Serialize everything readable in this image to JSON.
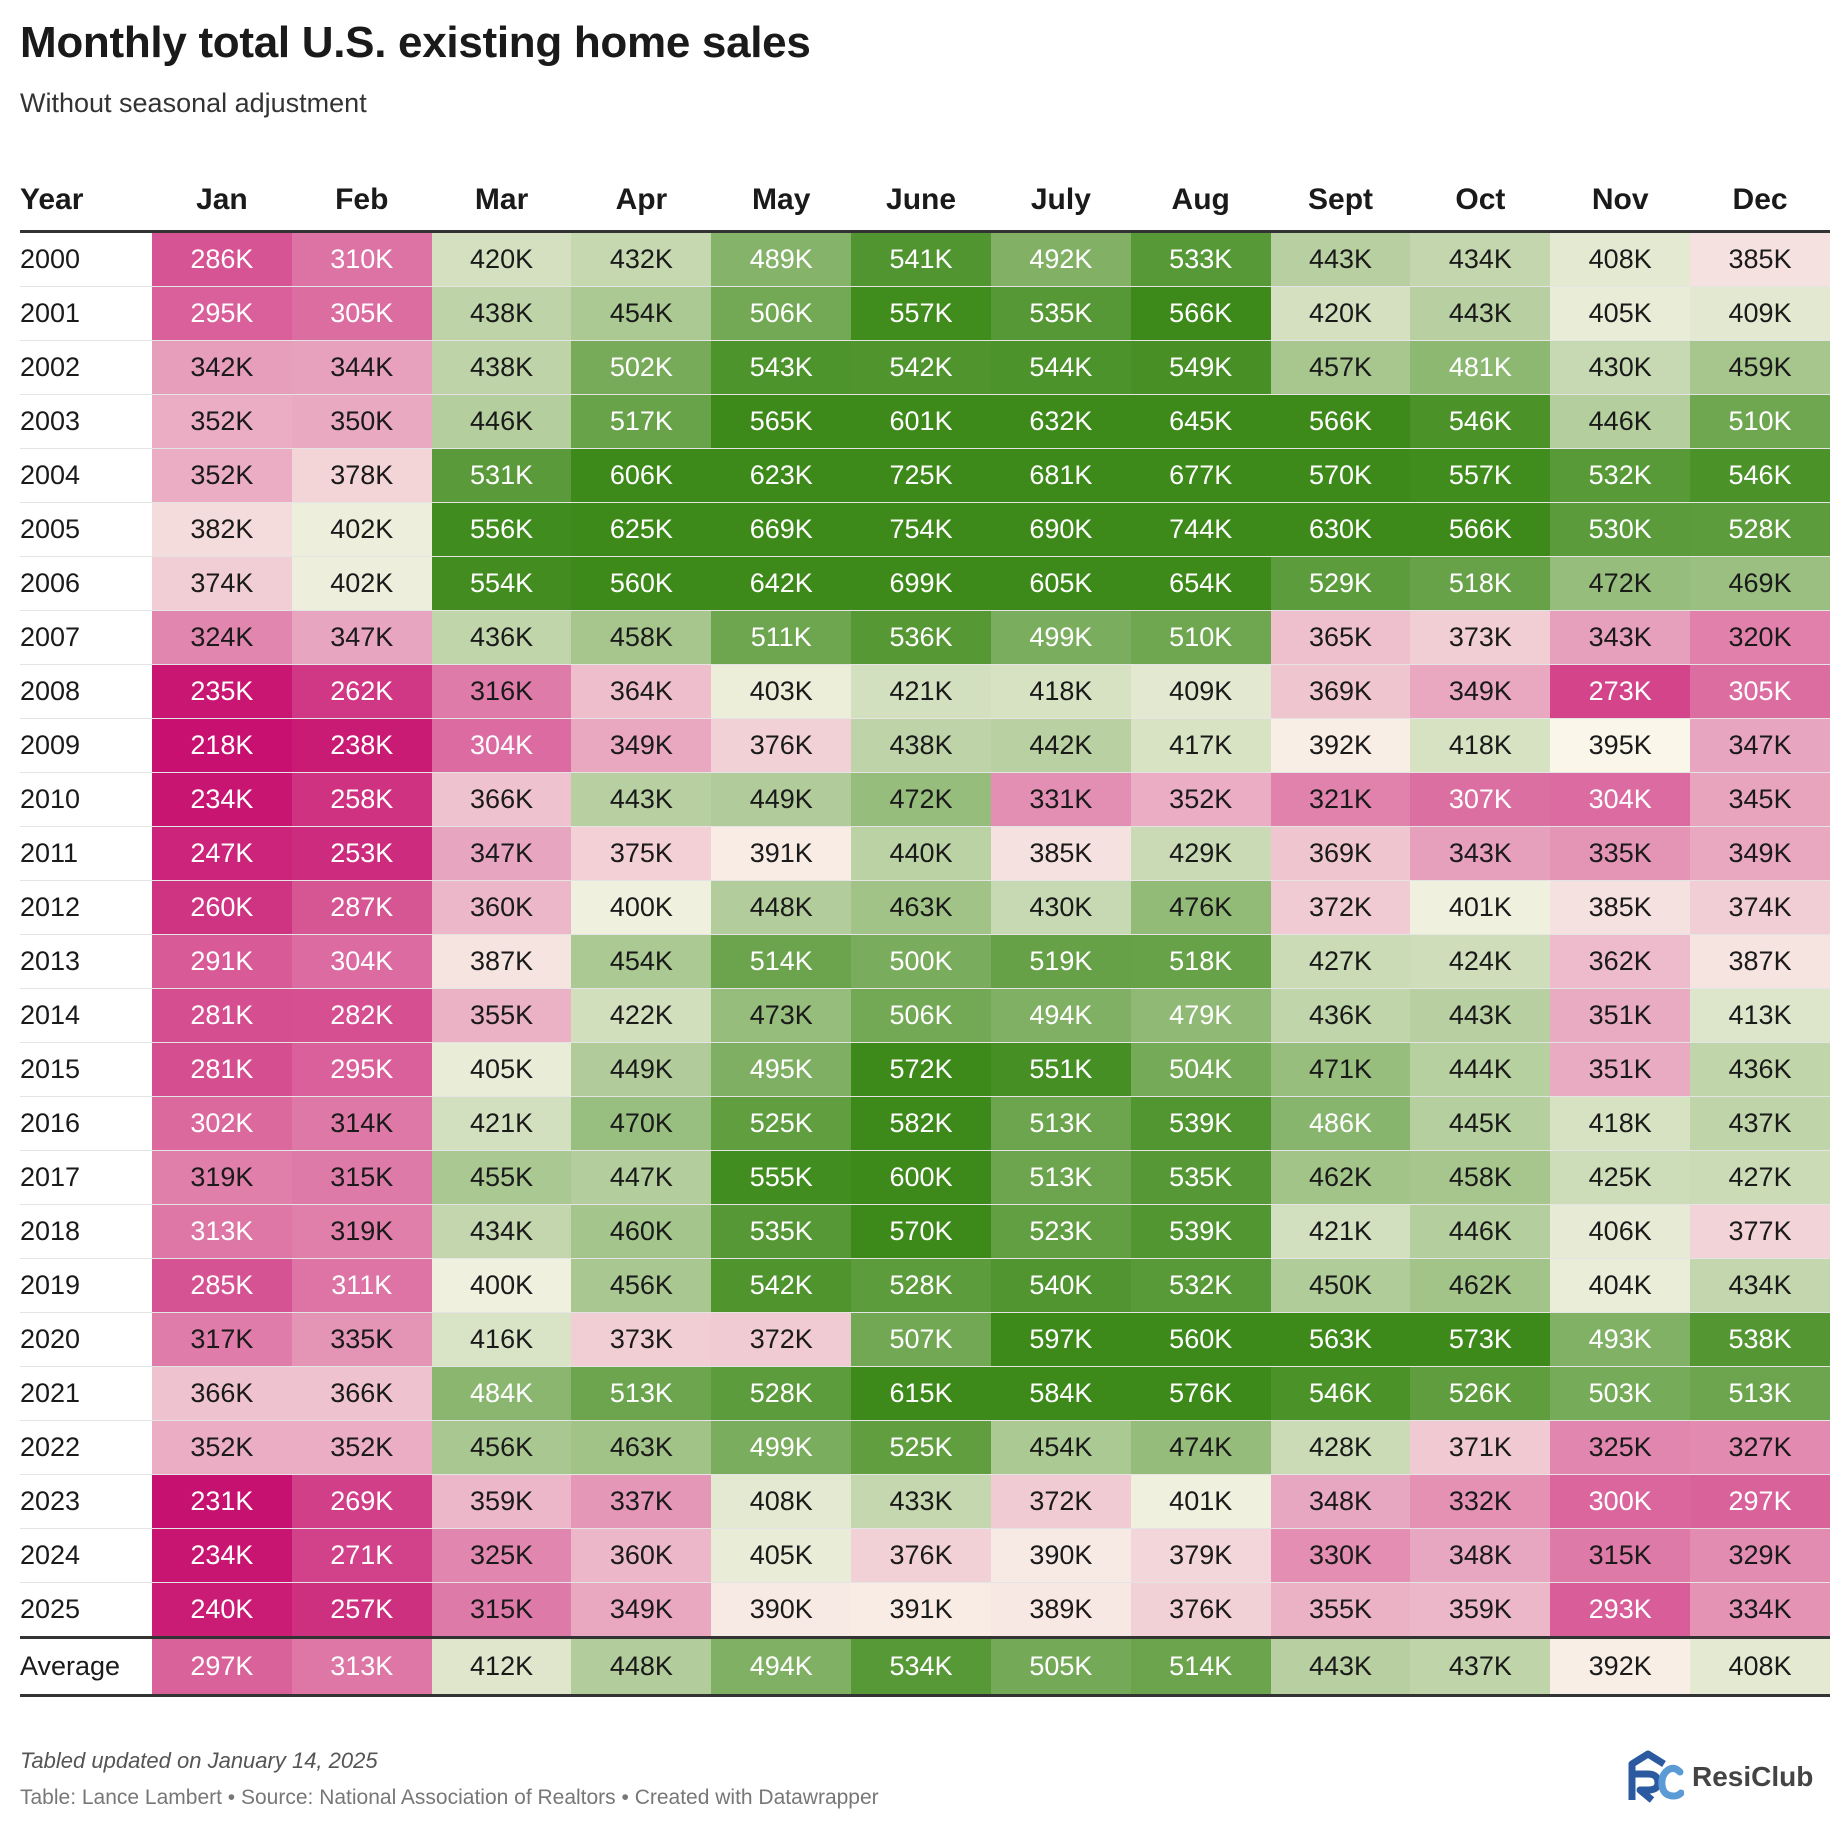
{
  "title": "Monthly total U.S. existing home sales",
  "subtitle": "Without seasonal adjustment",
  "note": "Tabled updated on January 14, 2025",
  "credit": "Table: Lance Lambert • Source: National Association of Realtors • Created with Datawrapper",
  "logo_text": "ResiClub",
  "colors": {
    "low": "#c7106f",
    "mid": "#faf6ea",
    "high": "#3d8a1a",
    "logo": "#2c5aa0"
  },
  "chart_data": {
    "type": "table",
    "title": "Monthly total U.S. existing home sales",
    "subtitle": "Without seasonal adjustment",
    "row_header": "Year",
    "columns": [
      "Jan",
      "Feb",
      "Mar",
      "Apr",
      "May",
      "June",
      "July",
      "Aug",
      "Sept",
      "Oct",
      "Nov",
      "Dec"
    ],
    "unit": "K",
    "rows": [
      {
        "label": "2000",
        "values": [
          286,
          310,
          420,
          432,
          489,
          541,
          492,
          533,
          443,
          434,
          408,
          385
        ]
      },
      {
        "label": "2001",
        "values": [
          295,
          305,
          438,
          454,
          506,
          557,
          535,
          566,
          420,
          443,
          405,
          409
        ]
      },
      {
        "label": "2002",
        "values": [
          342,
          344,
          438,
          502,
          543,
          542,
          544,
          549,
          457,
          481,
          430,
          459
        ]
      },
      {
        "label": "2003",
        "values": [
          352,
          350,
          446,
          517,
          565,
          601,
          632,
          645,
          566,
          546,
          446,
          510
        ]
      },
      {
        "label": "2004",
        "values": [
          352,
          378,
          531,
          606,
          623,
          725,
          681,
          677,
          570,
          557,
          532,
          546
        ]
      },
      {
        "label": "2005",
        "values": [
          382,
          402,
          556,
          625,
          669,
          754,
          690,
          744,
          630,
          566,
          530,
          528
        ]
      },
      {
        "label": "2006",
        "values": [
          374,
          402,
          554,
          560,
          642,
          699,
          605,
          654,
          529,
          518,
          472,
          469
        ]
      },
      {
        "label": "2007",
        "values": [
          324,
          347,
          436,
          458,
          511,
          536,
          499,
          510,
          365,
          373,
          343,
          320
        ]
      },
      {
        "label": "2008",
        "values": [
          235,
          262,
          316,
          364,
          403,
          421,
          418,
          409,
          369,
          349,
          273,
          305
        ]
      },
      {
        "label": "2009",
        "values": [
          218,
          238,
          304,
          349,
          376,
          438,
          442,
          417,
          392,
          418,
          395,
          347
        ]
      },
      {
        "label": "2010",
        "values": [
          234,
          258,
          366,
          443,
          449,
          472,
          331,
          352,
          321,
          307,
          304,
          345
        ]
      },
      {
        "label": "2011",
        "values": [
          247,
          253,
          347,
          375,
          391,
          440,
          385,
          429,
          369,
          343,
          335,
          349
        ]
      },
      {
        "label": "2012",
        "values": [
          260,
          287,
          360,
          400,
          448,
          463,
          430,
          476,
          372,
          401,
          385,
          374
        ]
      },
      {
        "label": "2013",
        "values": [
          291,
          304,
          387,
          454,
          514,
          500,
          519,
          518,
          427,
          424,
          362,
          387
        ]
      },
      {
        "label": "2014",
        "values": [
          281,
          282,
          355,
          422,
          473,
          506,
          494,
          479,
          436,
          443,
          351,
          413
        ]
      },
      {
        "label": "2015",
        "values": [
          281,
          295,
          405,
          449,
          495,
          572,
          551,
          504,
          471,
          444,
          351,
          436
        ]
      },
      {
        "label": "2016",
        "values": [
          302,
          314,
          421,
          470,
          525,
          582,
          513,
          539,
          486,
          445,
          418,
          437
        ]
      },
      {
        "label": "2017",
        "values": [
          319,
          315,
          455,
          447,
          555,
          600,
          513,
          535,
          462,
          458,
          425,
          427
        ]
      },
      {
        "label": "2018",
        "values": [
          313,
          319,
          434,
          460,
          535,
          570,
          523,
          539,
          421,
          446,
          406,
          377
        ]
      },
      {
        "label": "2019",
        "values": [
          285,
          311,
          400,
          456,
          542,
          528,
          540,
          532,
          450,
          462,
          404,
          434
        ]
      },
      {
        "label": "2020",
        "values": [
          317,
          335,
          416,
          373,
          372,
          507,
          597,
          560,
          563,
          573,
          493,
          538
        ]
      },
      {
        "label": "2021",
        "values": [
          366,
          366,
          484,
          513,
          528,
          615,
          584,
          576,
          546,
          526,
          503,
          513
        ]
      },
      {
        "label": "2022",
        "values": [
          352,
          352,
          456,
          463,
          499,
          525,
          454,
          474,
          428,
          371,
          325,
          327
        ]
      },
      {
        "label": "2023",
        "values": [
          231,
          269,
          359,
          337,
          408,
          433,
          372,
          401,
          348,
          332,
          300,
          297
        ]
      },
      {
        "label": "2024",
        "values": [
          234,
          271,
          325,
          360,
          405,
          376,
          390,
          379,
          330,
          348,
          315,
          329
        ]
      },
      {
        "label": "2025",
        "values": [
          240,
          257,
          315,
          349,
          390,
          391,
          389,
          376,
          355,
          359,
          293,
          334
        ]
      }
    ],
    "summary_row": {
      "label": "Average",
      "values": [
        297,
        313,
        412,
        448,
        494,
        534,
        505,
        514,
        443,
        437,
        392,
        408
      ]
    },
    "color_scale": {
      "min": 230,
      "mid": 395,
      "max": 560
    }
  }
}
